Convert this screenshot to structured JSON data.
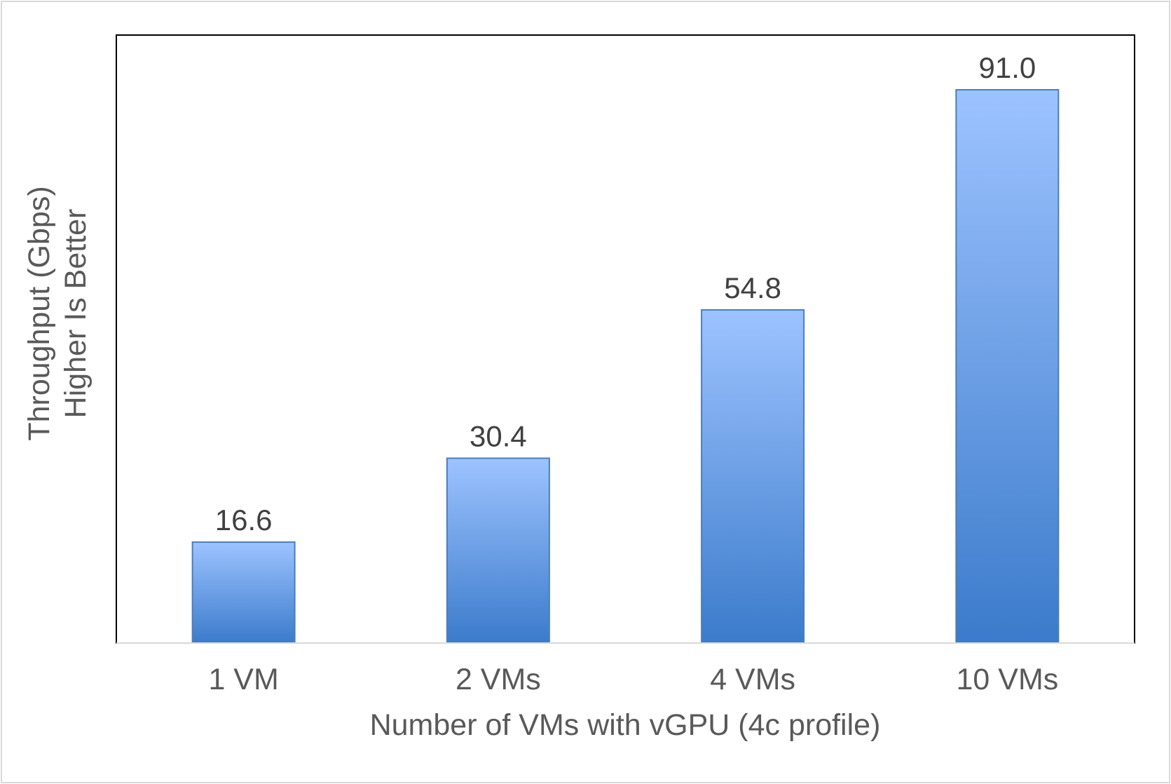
{
  "chart_data": {
    "type": "bar",
    "title": "",
    "categories": [
      "1 VM",
      "2 VMs",
      "4 VMs",
      "10 VMs"
    ],
    "values": [
      16.6,
      30.4,
      54.8,
      91.0
    ],
    "value_labels": [
      "16.6",
      "30.4",
      "54.8",
      "91.0"
    ],
    "xlabel": "Number of VMs with vGPU (4c profile)",
    "ylabel_lines": [
      "Throughput (Gbps)",
      "Higher Is Better"
    ],
    "ylim": [
      0,
      100
    ],
    "grid": false,
    "legend": "none",
    "colors": {
      "bar_top": "#9dc3ff",
      "bar_bottom": "#3b7bcb",
      "bar_border": "#4a7ebb",
      "text": "#404040",
      "axis_text": "#595959"
    }
  }
}
